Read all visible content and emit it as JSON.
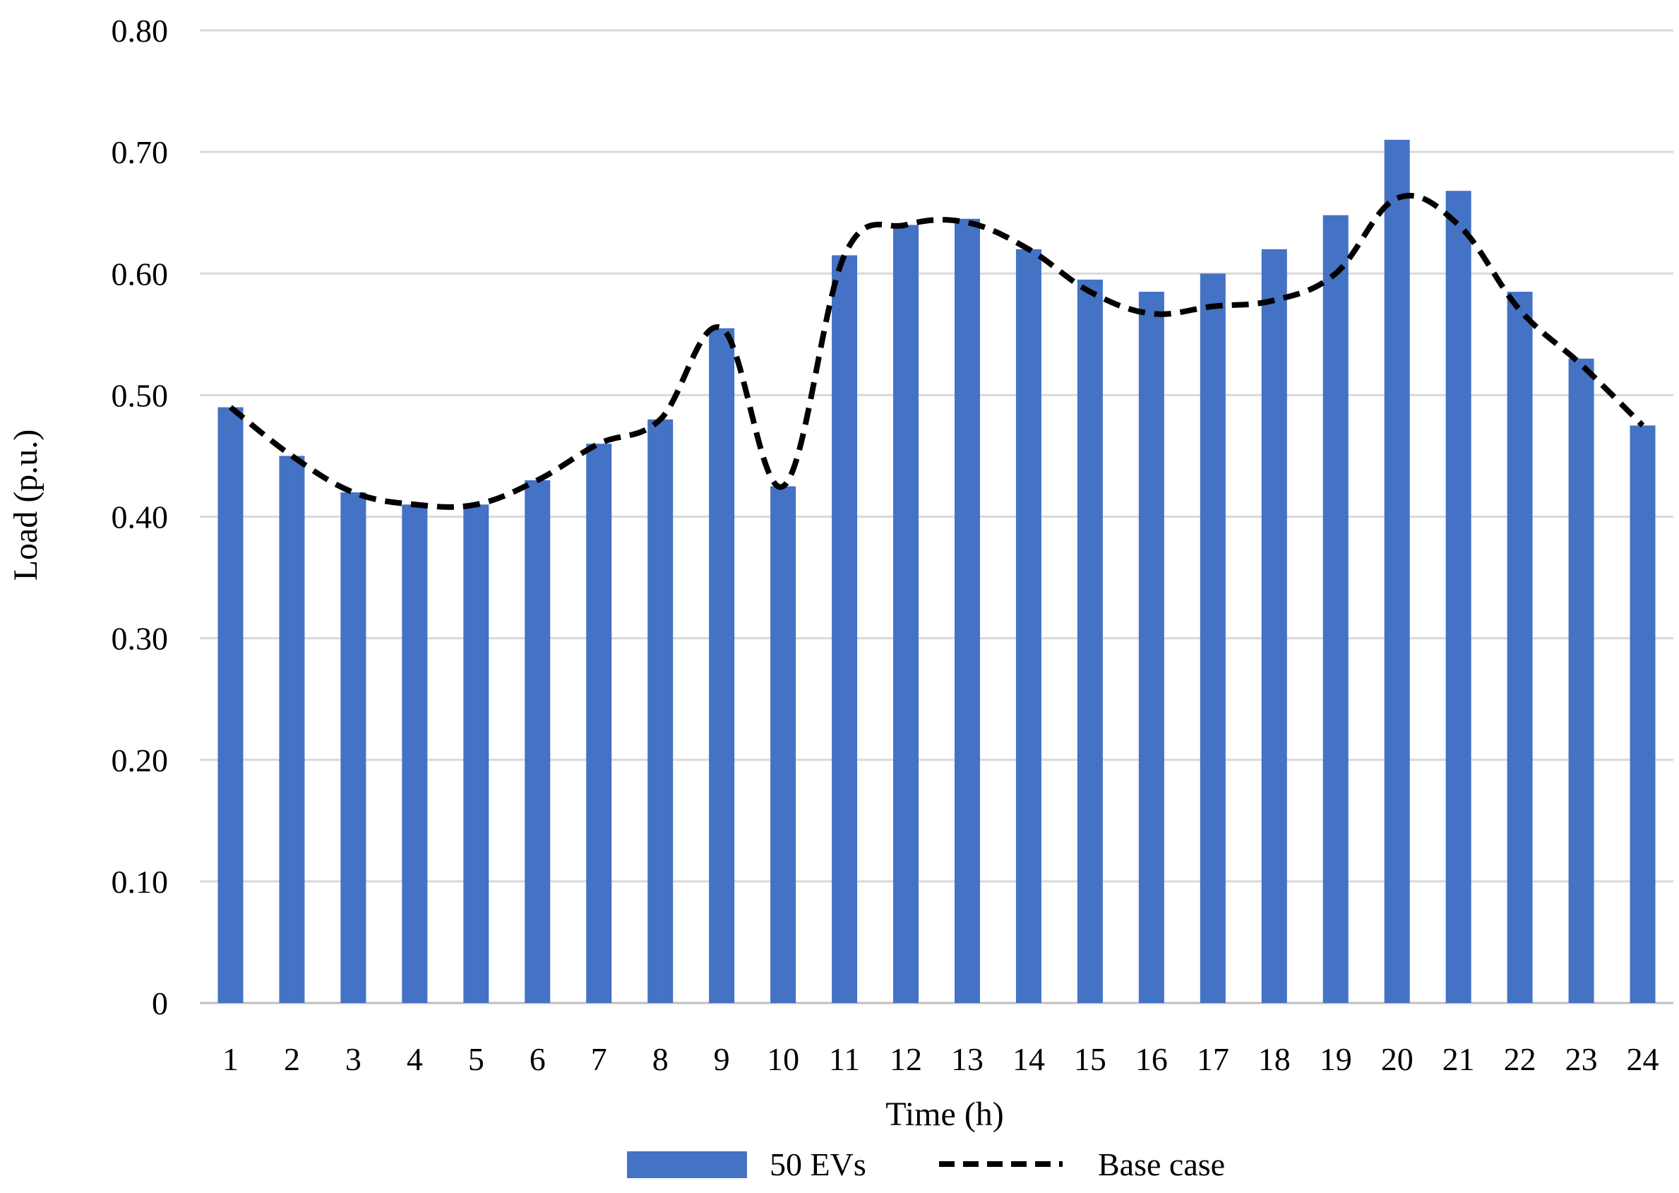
{
  "chart_data": {
    "type": "bar",
    "title": "",
    "xlabel": "Time (h)",
    "ylabel": "Load (p.u.)",
    "ylim": [
      0,
      0.8
    ],
    "y_ticks": [
      "0",
      "0.10",
      "0.20",
      "0.30",
      "0.40",
      "0.50",
      "0.60",
      "0.70",
      "0.80"
    ],
    "categories": [
      "1",
      "2",
      "3",
      "4",
      "5",
      "6",
      "7",
      "8",
      "9",
      "10",
      "11",
      "12",
      "13",
      "14",
      "15",
      "16",
      "17",
      "18",
      "19",
      "20",
      "21",
      "22",
      "23",
      "24"
    ],
    "series": [
      {
        "name": "50 EVs",
        "kind": "bar",
        "color": "#4472c4",
        "values": [
          0.49,
          0.45,
          0.42,
          0.41,
          0.41,
          0.43,
          0.46,
          0.48,
          0.555,
          0.425,
          0.615,
          0.64,
          0.645,
          0.62,
          0.595,
          0.585,
          0.6,
          0.62,
          0.648,
          0.71,
          0.668,
          0.585,
          0.53,
          0.475
        ]
      },
      {
        "name": "Base case",
        "kind": "line",
        "style": "dashed",
        "color": "#000000",
        "values": [
          0.49,
          0.45,
          0.42,
          0.41,
          0.41,
          0.43,
          0.46,
          0.48,
          0.555,
          0.425,
          0.615,
          0.64,
          0.642,
          0.62,
          0.585,
          0.567,
          0.573,
          0.578,
          0.6,
          0.662,
          0.64,
          0.57,
          0.525,
          0.475
        ]
      }
    ],
    "grid": true,
    "legend_position": "bottom-center"
  }
}
